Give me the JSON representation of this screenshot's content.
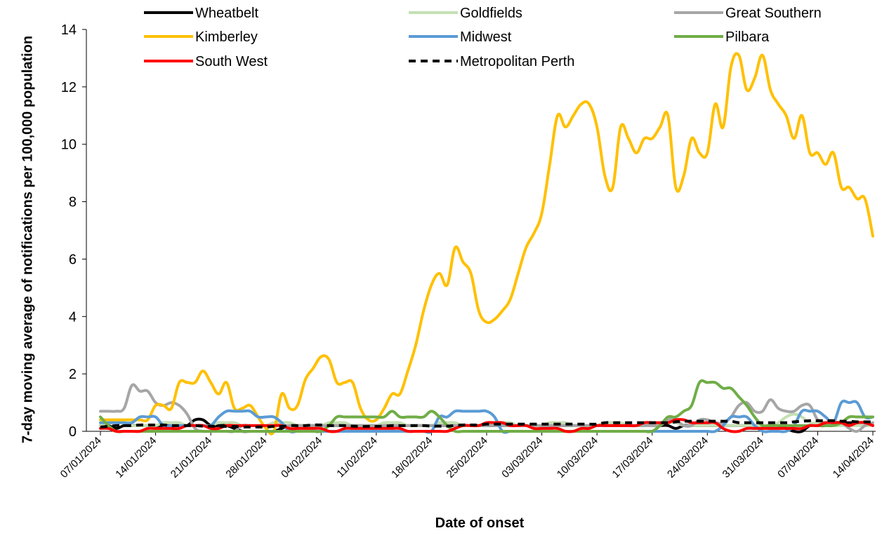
{
  "chart_data": {
    "type": "line",
    "y_label": "7-day moving average of notifications per 100,000 population",
    "x_label": "Date of onset",
    "legend": "top",
    "ylim": [
      0,
      14
    ],
    "yticks": [
      0,
      2,
      4,
      6,
      8,
      10,
      12,
      14
    ],
    "categories": [
      "07/01/2024",
      null,
      null,
      null,
      null,
      null,
      null,
      "14/01/2024",
      null,
      null,
      null,
      null,
      null,
      null,
      "21/01/2024",
      null,
      null,
      null,
      null,
      null,
      null,
      "28/01/2024",
      null,
      null,
      null,
      null,
      null,
      null,
      "04/02/2024",
      null,
      null,
      null,
      null,
      null,
      null,
      "11/02/2024",
      null,
      null,
      null,
      null,
      null,
      null,
      "18/02/2024",
      null,
      null,
      null,
      null,
      null,
      null,
      "25/02/2024",
      null,
      null,
      null,
      null,
      null,
      null,
      "03/03/2024",
      null,
      null,
      null,
      null,
      null,
      null,
      "10/03/2024",
      null,
      null,
      null,
      null,
      null,
      null,
      "17/03/2024",
      null,
      null,
      null,
      null,
      null,
      null,
      "24/03/2024",
      null,
      null,
      null,
      null,
      null,
      null,
      "31/03/2024",
      null,
      null,
      null,
      null,
      null,
      null,
      "07/04/2024",
      null,
      null,
      null,
      null,
      null,
      null,
      "14/04/2024"
    ],
    "series": [
      {
        "name": "Wheatbelt",
        "color": "#000000",
        "values": [
          0.2,
          0.2,
          0.1,
          0.2,
          0.2,
          0.2,
          0.2,
          0.2,
          0.2,
          0.2,
          0.2,
          0.2,
          0.4,
          0.4,
          0.2,
          0.2,
          0.2,
          0.1,
          0,
          0,
          0,
          0,
          0,
          0.1,
          0.2,
          0.2,
          0.2,
          0.2,
          0.2,
          0.2,
          0.2,
          0.2,
          0.2,
          0.2,
          0.2,
          0.2,
          0.2,
          0.2,
          0.2,
          0.2,
          0.2,
          0.2,
          0.2,
          0.2,
          0.2,
          0.2,
          0.2,
          0.2,
          0.2,
          0.2,
          0.2,
          0.2,
          0.2,
          0.2,
          0.2,
          0.2,
          0.2,
          0.2,
          0.2,
          0.2,
          0.2,
          0.2,
          0.2,
          0.2,
          0.2,
          0.2,
          0.2,
          0.2,
          0.2,
          0.2,
          0.2,
          0.2,
          0.2,
          0.1,
          0.2,
          0.2,
          0.2,
          0.2,
          0.2,
          0.2,
          0.2,
          0.2,
          0.2,
          0.2,
          0.2,
          0.2,
          0.2,
          0.1,
          0,
          0,
          0.2,
          0.2,
          0.2,
          0.3,
          0.3,
          0.3,
          0.3,
          0.3,
          0.2
        ]
      },
      {
        "name": "Goldfields",
        "color": "#c5e0b4",
        "values": [
          0.2,
          0.3,
          0.3,
          0.3,
          0.2,
          0.2,
          0.2,
          0.2,
          0.3,
          0.3,
          0.3,
          0.2,
          0.2,
          0.2,
          0.2,
          0.3,
          0.3,
          0.3,
          0.2,
          0.2,
          0.2,
          0.2,
          0.3,
          0.3,
          0.3,
          0.2,
          0.2,
          0.2,
          0.2,
          0.3,
          0.3,
          0.3,
          0.2,
          0.2,
          0.2,
          0.2,
          0.3,
          0.3,
          0.3,
          0.2,
          0.2,
          0.2,
          0.2,
          0.3,
          0.3,
          0.3,
          0.2,
          0.2,
          0.2,
          0.2,
          0.3,
          0.3,
          0.3,
          0.2,
          0.2,
          0.2,
          0.2,
          0.3,
          0.3,
          0.3,
          0.2,
          0.2,
          0.2,
          0.2,
          0.3,
          0.3,
          0.3,
          0.2,
          0.2,
          0.2,
          0.2,
          0.3,
          0.3,
          0.3,
          0.2,
          0.2,
          0.2,
          0.2,
          0.2,
          0.2,
          0.2,
          0.2,
          0.2,
          0.2,
          0.2,
          0.2,
          0.3,
          0.5,
          0.6,
          0.5,
          0.3,
          0.3,
          0.3,
          0.2,
          0.2,
          0.2,
          0.2,
          0.2,
          0.2
        ]
      },
      {
        "name": "Great Southern",
        "color": "#a6a6a6",
        "values": [
          0.7,
          0.7,
          0.7,
          0.8,
          1.6,
          1.4,
          1.4,
          1.0,
          0.9,
          1.0,
          0.9,
          0.6,
          0.1,
          0,
          0,
          0,
          0,
          0,
          0.2,
          0.2,
          0.2,
          0.2,
          0.2,
          0.2,
          0.2,
          0.2,
          0.2,
          0.2,
          0.2,
          0.2,
          0.2,
          0.2,
          0.2,
          0.2,
          0.2,
          0.2,
          0.2,
          0.2,
          0.2,
          0.2,
          0.2,
          0.2,
          0.2,
          0.2,
          0.2,
          0.2,
          0.2,
          0.2,
          0.2,
          0.2,
          0.2,
          0.2,
          0.2,
          0.2,
          0.2,
          0.2,
          0.2,
          0.2,
          0.2,
          0.2,
          0.2,
          0.2,
          0.2,
          0.2,
          0.2,
          0.2,
          0.2,
          0.2,
          0.2,
          0.2,
          0.2,
          0.2,
          0.4,
          0.4,
          0.2,
          0.2,
          0.4,
          0.4,
          0.3,
          0.3,
          0.5,
          0.9,
          1.0,
          0.7,
          0.7,
          1.1,
          0.8,
          0.7,
          0.7,
          0.9,
          0.9,
          0.4,
          0.3,
          0.3,
          0.3,
          0.1,
          0,
          0.2,
          0.3
        ]
      },
      {
        "name": "Kimberley",
        "color": "#ffc000",
        "values": [
          0.4,
          0.4,
          0.4,
          0.4,
          0.4,
          0.4,
          0.4,
          0.9,
          0.9,
          0.8,
          1.7,
          1.7,
          1.7,
          2.1,
          1.7,
          1.3,
          1.7,
          0.8,
          0.8,
          0.9,
          0.5,
          0.1,
          0,
          1.3,
          0.8,
          0.9,
          1.8,
          2.2,
          2.6,
          2.5,
          1.7,
          1.7,
          1.7,
          0.8,
          0.4,
          0.4,
          0.8,
          1.3,
          1.3,
          2.1,
          3,
          4.2,
          5.1,
          5.5,
          5.1,
          6.4,
          5.9,
          5.5,
          4.2,
          3.8,
          3.9,
          4.2,
          4.6,
          5.5,
          6.4,
          6.9,
          7.6,
          9.3,
          11,
          10.6,
          11,
          11.4,
          11.4,
          10.6,
          8.9,
          8.5,
          10.6,
          10.2,
          9.7,
          10.2,
          10.2,
          10.6,
          11,
          8.5,
          8.9,
          10.2,
          9.7,
          9.7,
          11.4,
          10.6,
          12.7,
          13.1,
          11.9,
          12.3,
          13.1,
          11.9,
          11.4,
          11,
          10.2,
          11,
          9.7,
          9.7,
          9.3,
          9.7,
          8.5,
          8.5,
          8.1,
          8.1,
          6.8
        ]
      },
      {
        "name": "Midwest",
        "color": "#5b9bd5",
        "values": [
          0.3,
          0.3,
          0.3,
          0.3,
          0.3,
          0.5,
          0.5,
          0.5,
          0.2,
          0.2,
          0.2,
          0.2,
          0.2,
          0.2,
          0.2,
          0.5,
          0.7,
          0.7,
          0.7,
          0.7,
          0.5,
          0.5,
          0.5,
          0.3,
          0,
          0,
          0,
          0,
          0,
          0,
          0,
          0,
          0,
          0,
          0,
          0,
          0,
          0,
          0,
          0,
          0,
          0,
          0,
          0.5,
          0.5,
          0.7,
          0.7,
          0.7,
          0.7,
          0.7,
          0.5,
          0,
          0,
          0,
          0,
          0,
          0,
          0,
          0,
          0,
          0,
          0,
          0,
          0,
          0,
          0,
          0,
          0,
          0,
          0,
          0,
          0,
          0,
          0,
          0,
          0,
          0,
          0,
          0,
          0.2,
          0.5,
          0.5,
          0.5,
          0.2,
          0,
          0,
          0,
          0,
          0.2,
          0.7,
          0.7,
          0.7,
          0.5,
          0.3,
          1.0,
          1.0,
          1.0,
          0.5,
          0.5
        ]
      },
      {
        "name": "Pilbara",
        "color": "#70ad47",
        "values": [
          0.5,
          0.2,
          0,
          0,
          0,
          0,
          0,
          0,
          0,
          0,
          0,
          0,
          0,
          0,
          0,
          0,
          0,
          0,
          0,
          0,
          0,
          0,
          0,
          0,
          0,
          0,
          0,
          0,
          0,
          0.2,
          0.5,
          0.5,
          0.5,
          0.5,
          0.5,
          0.5,
          0.5,
          0.7,
          0.5,
          0.5,
          0.5,
          0.5,
          0.7,
          0.5,
          0.2,
          0,
          0,
          0,
          0,
          0,
          0,
          0,
          0,
          0,
          0,
          0,
          0,
          0,
          0,
          0,
          0,
          0,
          0,
          0,
          0,
          0,
          0,
          0,
          0,
          0,
          0,
          0.2,
          0.5,
          0.5,
          0.7,
          0.9,
          1.7,
          1.7,
          1.7,
          1.5,
          1.5,
          1.2,
          0.9,
          0.5,
          0.2,
          0.2,
          0.2,
          0.2,
          0.2,
          0.2,
          0.2,
          0.2,
          0.2,
          0.2,
          0.3,
          0.5,
          0.5,
          0.5,
          0.5
        ]
      },
      {
        "name": "South West",
        "color": "#ff0000",
        "values": [
          0.1,
          0.1,
          0,
          0,
          0,
          0,
          0.1,
          0.1,
          0.1,
          0.1,
          0.1,
          0.2,
          0.2,
          0.2,
          0.1,
          0.1,
          0.2,
          0.2,
          0.2,
          0.2,
          0.2,
          0.2,
          0.2,
          0.2,
          0.1,
          0.1,
          0.1,
          0.1,
          0.1,
          0,
          0,
          0.1,
          0.1,
          0.1,
          0.1,
          0.1,
          0.1,
          0.1,
          0.1,
          0,
          0,
          0,
          0,
          0,
          0,
          0.1,
          0.2,
          0.2,
          0.2,
          0.3,
          0.3,
          0.3,
          0.2,
          0.2,
          0.2,
          0.1,
          0.1,
          0.1,
          0.1,
          0,
          0,
          0.1,
          0.1,
          0.2,
          0.2,
          0.2,
          0.2,
          0.2,
          0.2,
          0.3,
          0.3,
          0.3,
          0.3,
          0.4,
          0.4,
          0.3,
          0.3,
          0.3,
          0.3,
          0.1,
          0,
          0,
          0.1,
          0.1,
          0.1,
          0.1,
          0.1,
          0.1,
          0.1,
          0.1,
          0.2,
          0.2,
          0.3,
          0.3,
          0.3,
          0.2,
          0.3,
          0.3,
          0.2
        ]
      },
      {
        "name": "Metropolitan Perth",
        "color": "#000000",
        "dashed": true,
        "values": [
          0.15,
          0.17,
          0.2,
          0.2,
          0.2,
          0.22,
          0.22,
          0.22,
          0.22,
          0.2,
          0.2,
          0.2,
          0.2,
          0.18,
          0.18,
          0.17,
          0.17,
          0.17,
          0.15,
          0.15,
          0.15,
          0.15,
          0.17,
          0.17,
          0.2,
          0.2,
          0.2,
          0.22,
          0.22,
          0.2,
          0.2,
          0.2,
          0.18,
          0.17,
          0.17,
          0.17,
          0.18,
          0.2,
          0.2,
          0.2,
          0.2,
          0.2,
          0.18,
          0.18,
          0.18,
          0.2,
          0.22,
          0.22,
          0.22,
          0.25,
          0.25,
          0.25,
          0.25,
          0.25,
          0.25,
          0.25,
          0.25,
          0.25,
          0.25,
          0.25,
          0.25,
          0.25,
          0.25,
          0.25,
          0.3,
          0.3,
          0.3,
          0.3,
          0.3,
          0.3,
          0.3,
          0.3,
          0.3,
          0.33,
          0.35,
          0.35,
          0.35,
          0.35,
          0.35,
          0.35,
          0.35,
          0.3,
          0.3,
          0.3,
          0.3,
          0.3,
          0.3,
          0.3,
          0.33,
          0.35,
          0.37,
          0.37,
          0.37,
          0.37,
          0.35,
          0.35,
          0.33,
          0.33,
          0.33
        ]
      }
    ]
  }
}
